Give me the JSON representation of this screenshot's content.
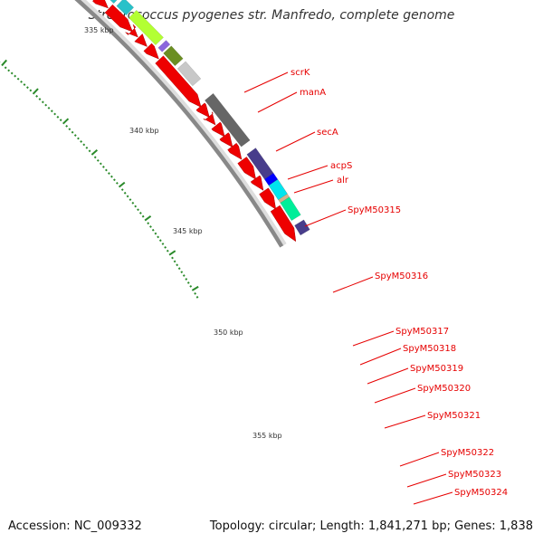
{
  "title": "Streptococcus pyogenes str. Manfredo, complete genome",
  "footer": {
    "accession": "Accession: NC_009332",
    "summary": "Topology: circular; Length: 1,841,271 bp; Genes: 1,838"
  },
  "colors": {
    "backbone_dark": "#888888",
    "backbone_light": "#d8d8d8",
    "tick": "#2a8a2a",
    "gene_label": "#e60000",
    "gene_red": "#ee0000"
  },
  "tick_labels": [
    "335 kbp",
    "340 kbp",
    "345 kbp",
    "350 kbp",
    "355 kbp"
  ],
  "gene_labels": [
    "scrK",
    "manA",
    "secA",
    "acpS",
    "alr",
    "SpyM50315",
    "SpyM50316",
    "SpyM50317",
    "SpyM50318",
    "SpyM50319",
    "SpyM50320",
    "SpyM50321",
    "SpyM50322",
    "SpyM50323",
    "SpyM50324"
  ]
}
